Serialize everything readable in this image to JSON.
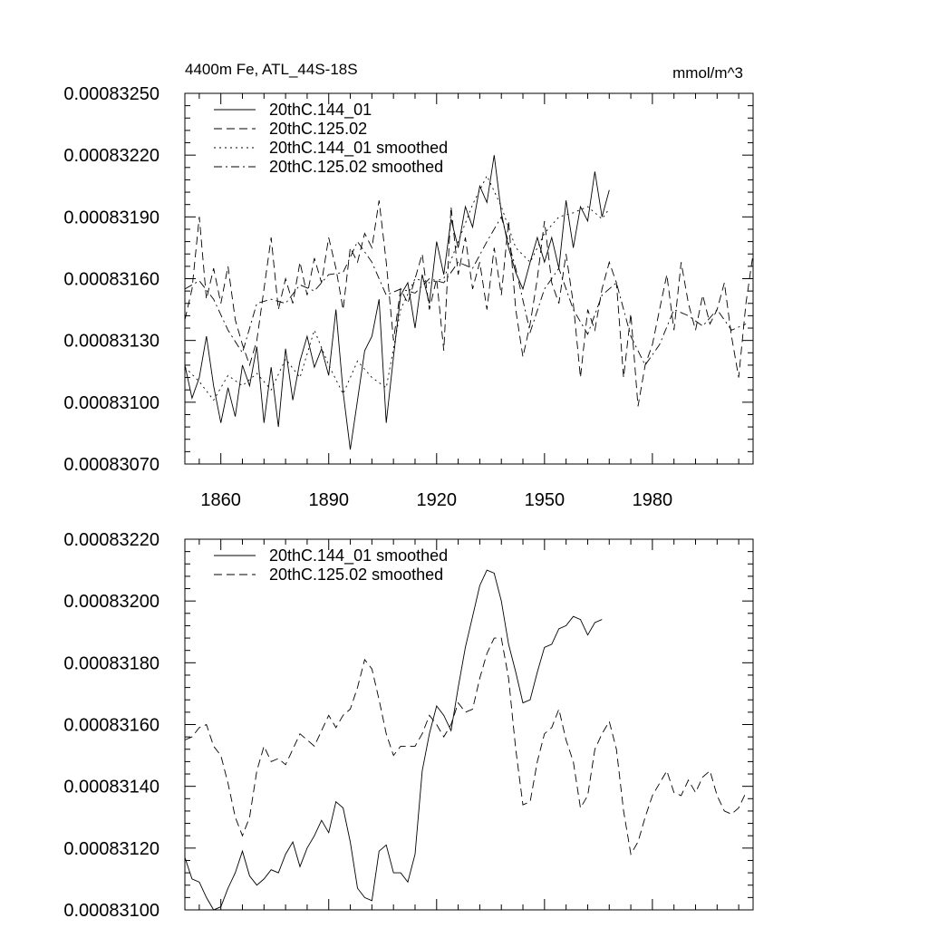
{
  "chart_data": [
    {
      "type": "line",
      "title": "4400m Fe, ATL_44S-18S",
      "units": "mmol/m^3",
      "xlabel": "",
      "ylabel": "",
      "xlim": [
        1850,
        2008
      ],
      "ylim": [
        0.0008307,
        0.0008325
      ],
      "yticks": [
        0.0008307,
        0.000831,
        0.0008313,
        0.0008316,
        0.0008319,
        0.0008322,
        0.0008325
      ],
      "ytick_labels": [
        "0.00083070",
        "0.00083100",
        "0.00083130",
        "0.00083160",
        "0.00083190",
        "0.00083220",
        "0.00083250"
      ],
      "xticks": [
        1860,
        1890,
        1920,
        1950,
        1980
      ],
      "xtick_labels": [
        "1860",
        "1890",
        "1920",
        "1950",
        "1980"
      ],
      "legend_position": "top-left",
      "series": [
        {
          "name": "20thC.144_01",
          "dash": "solid",
          "x": [
            1850,
            1852,
            1854,
            1856,
            1858,
            1860,
            1862,
            1864,
            1866,
            1868,
            1870,
            1872,
            1874,
            1876,
            1878,
            1880,
            1882,
            1884,
            1886,
            1888,
            1890,
            1892,
            1894,
            1896,
            1898,
            1900,
            1902,
            1904,
            1906,
            1908,
            1910,
            1912,
            1914,
            1916,
            1918,
            1920,
            1922,
            1924,
            1926,
            1928,
            1930,
            1932,
            1934,
            1936,
            1938,
            1940,
            1942,
            1944,
            1946,
            1948,
            1950,
            1952,
            1954,
            1956,
            1958,
            1960,
            1962,
            1964,
            1966,
            1968
          ],
          "y": [
            0.00083118,
            0.00083102,
            0.00083112,
            0.00083132,
            0.00083108,
            0.0008309,
            0.00083107,
            0.00083093,
            0.00083118,
            0.00083108,
            0.00083127,
            0.0008309,
            0.00083117,
            0.00083088,
            0.00083126,
            0.00083101,
            0.0008312,
            0.00083132,
            0.00083117,
            0.00083126,
            0.00083113,
            0.00083145,
            0.00083105,
            0.00083077,
            0.00083101,
            0.00083125,
            0.00083132,
            0.0008315,
            0.0008309,
            0.00083122,
            0.00083152,
            0.00083158,
            0.00083136,
            0.00083162,
            0.00083148,
            0.00083178,
            0.00083162,
            0.00083189,
            0.00083175,
            0.00083195,
            0.00083185,
            0.00083205,
            0.00083197,
            0.0008322,
            0.00083192,
            0.00083175,
            0.00083163,
            0.00083155,
            0.00083168,
            0.0008318,
            0.00083168,
            0.0008318,
            0.00083165,
            0.00083198,
            0.00083175,
            0.00083195,
            0.00083188,
            0.00083212,
            0.0008319,
            0.00083203
          ]
        },
        {
          "name": "20thC.125.02",
          "dash": "long-dash",
          "x": [
            1850,
            1852,
            1854,
            1856,
            1858,
            1860,
            1862,
            1864,
            1866,
            1868,
            1870,
            1872,
            1874,
            1876,
            1878,
            1880,
            1882,
            1884,
            1886,
            1888,
            1890,
            1892,
            1894,
            1896,
            1898,
            1900,
            1902,
            1904,
            1906,
            1908,
            1910,
            1912,
            1914,
            1916,
            1918,
            1920,
            1922,
            1924,
            1926,
            1928,
            1930,
            1932,
            1934,
            1936,
            1938,
            1940,
            1942,
            1944,
            1946,
            1948,
            1950,
            1952,
            1954,
            1956,
            1958,
            1960,
            1962,
            1964,
            1966,
            1968,
            1970,
            1972,
            1974,
            1976,
            1978,
            1980,
            1982,
            1984,
            1986,
            1988,
            1990,
            1992,
            1994,
            1996,
            1998,
            2000,
            2002,
            2004,
            2006,
            2008
          ],
          "y": [
            0.0008314,
            0.00083155,
            0.0008319,
            0.0008315,
            0.00083165,
            0.00083148,
            0.00083166,
            0.0008314,
            0.00083128,
            0.00083118,
            0.0008313,
            0.00083155,
            0.0008318,
            0.00083145,
            0.0008316,
            0.00083148,
            0.00083168,
            0.00083152,
            0.0008317,
            0.00083158,
            0.0008318,
            0.00083165,
            0.00083145,
            0.00083175,
            0.00083168,
            0.00083182,
            0.00083175,
            0.00083198,
            0.00083168,
            0.0008313,
            0.00083155,
            0.00083148,
            0.0008316,
            0.00083172,
            0.00083145,
            0.0008316,
            0.00083125,
            0.00083195,
            0.00083162,
            0.0008318,
            0.00083155,
            0.00083168,
            0.00083145,
            0.00083175,
            0.00083152,
            0.00083188,
            0.00083145,
            0.00083122,
            0.00083138,
            0.0008316,
            0.00083188,
            0.00083158,
            0.00083148,
            0.00083172,
            0.00083148,
            0.00083112,
            0.00083145,
            0.00083135,
            0.00083155,
            0.00083168,
            0.00083158,
            0.00083112,
            0.00083143,
            0.00083098,
            0.00083118,
            0.00083128,
            0.00083145,
            0.00083162,
            0.00083135,
            0.00083168,
            0.00083148,
            0.00083135,
            0.00083152,
            0.00083138,
            0.00083145,
            0.00083158,
            0.00083132,
            0.00083112,
            0.00083148,
            0.00083172
          ]
        },
        {
          "name": "20thC.144_01 smoothed",
          "dash": "dotted",
          "x": [
            1850,
            1854,
            1858,
            1862,
            1866,
            1870,
            1874,
            1878,
            1882,
            1886,
            1890,
            1894,
            1898,
            1902,
            1906,
            1910,
            1914,
            1918,
            1922,
            1926,
            1930,
            1934,
            1938,
            1942,
            1946,
            1950,
            1954,
            1958,
            1962,
            1966,
            1968
          ],
          "y": [
            0.00083117,
            0.0008311,
            0.00083101,
            0.00083113,
            0.00083108,
            0.00083114,
            0.00083106,
            0.00083121,
            0.00083112,
            0.00083135,
            0.00083118,
            0.00083104,
            0.0008312,
            0.00083112,
            0.00083107,
            0.00083145,
            0.0008316,
            0.00083158,
            0.0008316,
            0.00083178,
            0.00083196,
            0.0008321,
            0.00083195,
            0.00083175,
            0.00083168,
            0.00083182,
            0.0008319,
            0.00083192,
            0.00083195,
            0.00083189,
            0.00083194
          ]
        },
        {
          "name": "20thC.125.02 smoothed",
          "dash": "dash-dot",
          "x": [
            1850,
            1854,
            1858,
            1862,
            1866,
            1870,
            1874,
            1878,
            1882,
            1886,
            1890,
            1894,
            1898,
            1902,
            1906,
            1910,
            1914,
            1918,
            1922,
            1926,
            1930,
            1934,
            1938,
            1942,
            1946,
            1950,
            1954,
            1958,
            1962,
            1966,
            1970,
            1974,
            1978,
            1982,
            1986,
            1990,
            1994,
            1998,
            2002,
            2006
          ],
          "y": [
            0.00083155,
            0.00083159,
            0.0008315,
            0.00083135,
            0.00083124,
            0.00083148,
            0.0008315,
            0.00083148,
            0.00083157,
            0.00083154,
            0.00083162,
            0.00083163,
            0.00083178,
            0.00083168,
            0.00083152,
            0.00083155,
            0.00083153,
            0.0008316,
            0.00083158,
            0.00083168,
            0.00083165,
            0.00083178,
            0.0008319,
            0.00083165,
            0.00083134,
            0.00083155,
            0.00083165,
            0.00083145,
            0.00083133,
            0.00083152,
            0.00083158,
            0.00083132,
            0.00083118,
            0.00083128,
            0.00083145,
            0.00083142,
            0.00083137,
            0.00083145,
            0.00083135,
            0.00083138
          ]
        }
      ]
    },
    {
      "type": "line",
      "title": "",
      "xlabel": "",
      "ylabel": "",
      "xlim": [
        1850,
        2008
      ],
      "ylim": [
        0.000831,
        0.0008322
      ],
      "yticks": [
        0.000831,
        0.0008312,
        0.0008314,
        0.0008316,
        0.0008318,
        0.000832,
        0.0008322
      ],
      "ytick_labels": [
        "0.00083100",
        "0.00083120",
        "0.00083140",
        "0.00083160",
        "0.00083180",
        "0.00083200",
        "0.00083220"
      ],
      "xticks": [
        1860,
        1890,
        1920,
        1950,
        1980
      ],
      "xtick_labels": [],
      "legend_position": "top-left",
      "series": [
        {
          "name": "20thC.144_01 smoothed",
          "dash": "solid",
          "x": [
            1850,
            1852,
            1854,
            1856,
            1858,
            1860,
            1862,
            1864,
            1866,
            1868,
            1870,
            1872,
            1874,
            1876,
            1878,
            1880,
            1882,
            1884,
            1886,
            1888,
            1890,
            1892,
            1894,
            1896,
            1898,
            1900,
            1902,
            1904,
            1906,
            1908,
            1910,
            1912,
            1914,
            1916,
            1918,
            1920,
            1922,
            1924,
            1926,
            1928,
            1930,
            1932,
            1934,
            1936,
            1938,
            1940,
            1942,
            1944,
            1946,
            1948,
            1950,
            1952,
            1954,
            1956,
            1958,
            1960,
            1962,
            1964,
            1966
          ],
          "y": [
            0.00083117,
            0.0008311,
            0.00083109,
            0.00083104,
            0.000831,
            0.00083101,
            0.00083107,
            0.00083112,
            0.00083119,
            0.00083111,
            0.00083108,
            0.0008311,
            0.00083113,
            0.00083112,
            0.00083118,
            0.00083122,
            0.00083114,
            0.0008312,
            0.00083124,
            0.00083129,
            0.00083125,
            0.00083135,
            0.00083133,
            0.00083122,
            0.00083107,
            0.00083104,
            0.00083103,
            0.00083119,
            0.00083121,
            0.00083112,
            0.00083112,
            0.00083109,
            0.00083118,
            0.00083145,
            0.00083157,
            0.00083166,
            0.00083163,
            0.00083158,
            0.00083172,
            0.00083185,
            0.00083195,
            0.00083205,
            0.0008321,
            0.00083209,
            0.000832,
            0.00083186,
            0.00083177,
            0.00083167,
            0.00083168,
            0.00083177,
            0.00083185,
            0.00083186,
            0.00083191,
            0.00083192,
            0.00083195,
            0.00083194,
            0.00083189,
            0.00083193,
            0.00083194
          ]
        },
        {
          "name": "20thC.125.02 smoothed",
          "dash": "long-dash",
          "x": [
            1850,
            1852,
            1854,
            1856,
            1858,
            1860,
            1862,
            1864,
            1866,
            1868,
            1870,
            1872,
            1874,
            1876,
            1878,
            1880,
            1882,
            1884,
            1886,
            1888,
            1890,
            1892,
            1894,
            1896,
            1898,
            1900,
            1902,
            1904,
            1906,
            1908,
            1910,
            1912,
            1914,
            1916,
            1918,
            1920,
            1922,
            1924,
            1926,
            1928,
            1930,
            1932,
            1934,
            1936,
            1938,
            1940,
            1942,
            1944,
            1946,
            1948,
            1950,
            1952,
            1954,
            1956,
            1958,
            1960,
            1962,
            1964,
            1966,
            1968,
            1970,
            1972,
            1974,
            1976,
            1978,
            1980,
            1982,
            1984,
            1986,
            1988,
            1990,
            1992,
            1994,
            1996,
            1998,
            2000,
            2002,
            2004,
            2006
          ],
          "y": [
            0.00083155,
            0.00083156,
            0.00083159,
            0.0008316,
            0.00083153,
            0.0008315,
            0.00083141,
            0.0008313,
            0.00083124,
            0.0008313,
            0.00083145,
            0.00083153,
            0.00083148,
            0.00083149,
            0.00083147,
            0.00083152,
            0.00083157,
            0.00083155,
            0.00083153,
            0.00083158,
            0.00083163,
            0.00083159,
            0.00083163,
            0.00083165,
            0.00083172,
            0.00083181,
            0.00083178,
            0.00083168,
            0.00083157,
            0.0008315,
            0.00083153,
            0.00083153,
            0.00083153,
            0.00083157,
            0.00083163,
            0.0008316,
            0.00083156,
            0.0008316,
            0.00083167,
            0.00083164,
            0.00083165,
            0.00083175,
            0.00083183,
            0.00083188,
            0.00083188,
            0.00083175,
            0.00083152,
            0.00083134,
            0.00083135,
            0.00083148,
            0.00083157,
            0.00083159,
            0.00083165,
            0.00083155,
            0.00083148,
            0.00083133,
            0.00083137,
            0.00083152,
            0.00083157,
            0.00083161,
            0.00083152,
            0.00083132,
            0.00083118,
            0.00083122,
            0.0008313,
            0.00083137,
            0.00083141,
            0.00083145,
            0.00083138,
            0.00083137,
            0.00083142,
            0.00083138,
            0.00083143,
            0.00083145,
            0.00083137,
            0.00083132,
            0.00083131,
            0.00083133,
            0.00083138
          ]
        }
      ]
    }
  ]
}
